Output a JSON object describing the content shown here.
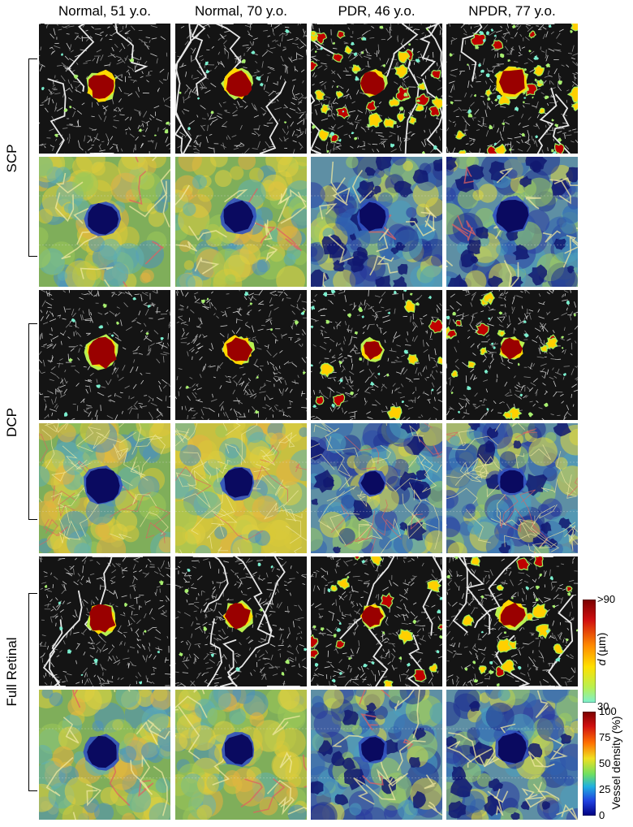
{
  "columns": [
    {
      "label": "Normal, 51 y.o."
    },
    {
      "label": "Normal, 70 y.o."
    },
    {
      "label": "PDR, 46 y.o."
    },
    {
      "label": "NPDR, 77 y.o."
    }
  ],
  "rows": [
    {
      "label": "SCP"
    },
    {
      "label": "DCP"
    },
    {
      "label": "Full Retinal"
    }
  ],
  "colorbar_d": {
    "title_italic": "d",
    "title_rest": " (µm)",
    "top_label": ">90",
    "bottom_label": "30",
    "colors": [
      "#b00000",
      "#e03010",
      "#ff8c00",
      "#ffe000",
      "#b8f050",
      "#7cf0d0"
    ]
  },
  "colorbar_vd": {
    "title": "Vessel density (%)",
    "ticks": [
      "100",
      "75",
      "50",
      "25",
      "0"
    ],
    "colors": [
      "#7a0000",
      "#d01010",
      "#ff7000",
      "#f0e020",
      "#70e060",
      "#20b0e0",
      "#2040e0",
      "#000080"
    ]
  }
}
